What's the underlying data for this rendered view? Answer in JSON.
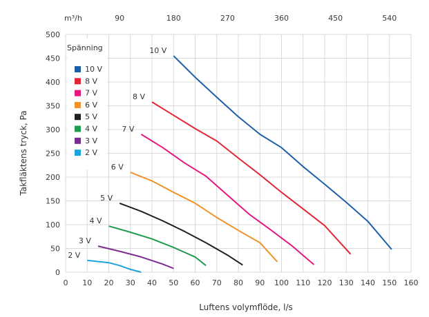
{
  "chart_data": {
    "type": "line",
    "title": "",
    "xlabel": "Luftens volymflöde, l/s",
    "ylabel": "Takfläktens tryck, Pa",
    "xlim": [
      0,
      160
    ],
    "ylim": [
      0,
      500
    ],
    "x_ticks": [
      "0",
      "10",
      "20",
      "30",
      "40",
      "50",
      "60",
      "70",
      "80",
      "90",
      "100",
      "110",
      "120",
      "130",
      "140",
      "150",
      "160"
    ],
    "y_ticks": [
      "0",
      "50",
      "100",
      "150",
      "200",
      "250",
      "300",
      "350",
      "400",
      "450",
      "500"
    ],
    "secondary_axis": {
      "unit_label": "m³/h",
      "ticks": [
        "90",
        "180",
        "270",
        "360",
        "450",
        "540"
      ]
    },
    "grid": true,
    "legend": {
      "title": "Spänning",
      "placement": "top-left",
      "entries": [
        "10 V",
        "8 V",
        "7 V",
        "6 V",
        "5 V",
        "4 V",
        "3 V",
        "2 V"
      ]
    },
    "series": [
      {
        "name": "10 V",
        "label": "10 V",
        "color": "#1c5fa8",
        "points": [
          [
            50,
            455
          ],
          [
            60,
            410
          ],
          [
            70,
            368
          ],
          [
            80,
            327
          ],
          [
            90,
            290
          ],
          [
            100,
            262
          ],
          [
            110,
            222
          ],
          [
            120,
            185
          ],
          [
            130,
            147
          ],
          [
            140,
            107
          ],
          [
            151,
            48
          ]
        ]
      },
      {
        "name": "8 V",
        "label": "8 V",
        "color": "#e32636",
        "points": [
          [
            40,
            358
          ],
          [
            50,
            330
          ],
          [
            60,
            302
          ],
          [
            70,
            276
          ],
          [
            80,
            240
          ],
          [
            90,
            205
          ],
          [
            100,
            168
          ],
          [
            110,
            133
          ],
          [
            120,
            98
          ],
          [
            132,
            38
          ]
        ]
      },
      {
        "name": "7 V",
        "label": "7 V",
        "color": "#e6187e",
        "points": [
          [
            35,
            290
          ],
          [
            45,
            262
          ],
          [
            55,
            230
          ],
          [
            65,
            202
          ],
          [
            75,
            162
          ],
          [
            85,
            122
          ],
          [
            95,
            89
          ],
          [
            105,
            55
          ],
          [
            115,
            16
          ]
        ]
      },
      {
        "name": "6 V",
        "label": "6 V",
        "color": "#ef9228",
        "points": [
          [
            30,
            210
          ],
          [
            40,
            192
          ],
          [
            50,
            168
          ],
          [
            60,
            145
          ],
          [
            70,
            115
          ],
          [
            80,
            88
          ],
          [
            90,
            62
          ],
          [
            98,
            22
          ]
        ]
      },
      {
        "name": "5 V",
        "label": "5 V",
        "color": "#1f1f1f",
        "points": [
          [
            25,
            145
          ],
          [
            35,
            128
          ],
          [
            45,
            108
          ],
          [
            55,
            86
          ],
          [
            65,
            62
          ],
          [
            75,
            36
          ],
          [
            82,
            15
          ]
        ]
      },
      {
        "name": "4 V",
        "label": "4 V",
        "color": "#1f9b4c",
        "points": [
          [
            20,
            97
          ],
          [
            30,
            84
          ],
          [
            40,
            70
          ],
          [
            50,
            52
          ],
          [
            60,
            32
          ],
          [
            65,
            14
          ]
        ]
      },
      {
        "name": "3 V",
        "label": "3 V",
        "color": "#7b2d8e",
        "points": [
          [
            15,
            55
          ],
          [
            25,
            44
          ],
          [
            35,
            32
          ],
          [
            45,
            17
          ],
          [
            50,
            8
          ]
        ]
      },
      {
        "name": "2 V",
        "label": "2 V",
        "color": "#1aa3df",
        "points": [
          [
            10,
            25
          ],
          [
            20,
            20
          ],
          [
            25,
            14
          ],
          [
            30,
            6
          ],
          [
            35,
            0
          ]
        ]
      }
    ]
  }
}
